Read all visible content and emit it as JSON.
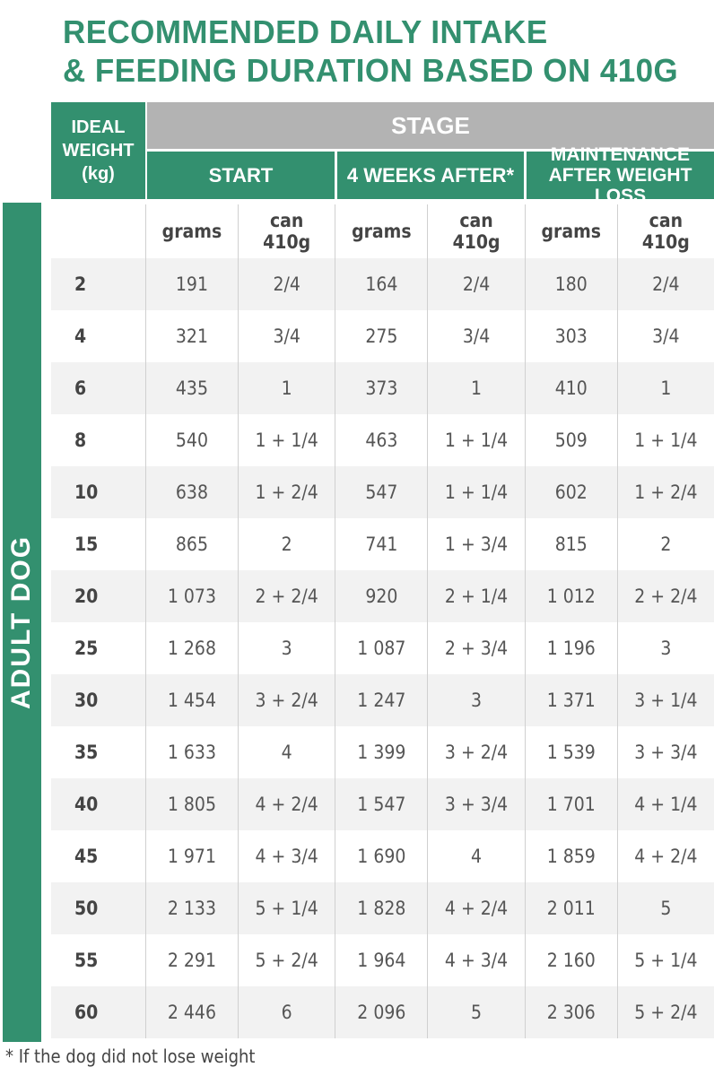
{
  "title": {
    "line1": "RECOMMENDED DAILY INTAKE",
    "line2": "& FEEDING DURATION BASED ON 410G"
  },
  "header": {
    "ideal_weight": "IDEAL WEIGHT (kg)",
    "stage": "STAGE",
    "start": "START",
    "weeks": "4 WEEKS AFTER*",
    "maintenance": "MAINTENANCE AFTER WEIGHT LOSS"
  },
  "subheader": [
    "grams",
    "can 410g",
    "grams",
    "can 410g",
    "grams",
    "can 410g"
  ],
  "side_label": "ADULT DOG",
  "colors": {
    "accent": "#33906f",
    "stage_gray": "#b3b3b3"
  },
  "rows": [
    [
      "2",
      "191",
      "2/4",
      "164",
      "2/4",
      "180",
      "2/4"
    ],
    [
      "4",
      "321",
      "3/4",
      "275",
      "3/4",
      "303",
      "3/4"
    ],
    [
      "6",
      "435",
      "1",
      "373",
      "1",
      "410",
      "1"
    ],
    [
      "8",
      "540",
      "1 + 1/4",
      "463",
      "1 + 1/4",
      "509",
      "1 + 1/4"
    ],
    [
      "10",
      "638",
      "1 + 2/4",
      "547",
      "1 + 1/4",
      "602",
      "1 + 2/4"
    ],
    [
      "15",
      "865",
      "2",
      "741",
      "1 + 3/4",
      "815",
      "2"
    ],
    [
      "20",
      "1 073",
      "2 + 2/4",
      "920",
      "2 + 1/4",
      "1 012",
      "2 + 2/4"
    ],
    [
      "25",
      "1 268",
      "3",
      "1 087",
      "2 + 3/4",
      "1 196",
      "3"
    ],
    [
      "30",
      "1 454",
      "3 + 2/4",
      "1 247",
      "3",
      "1 371",
      "3 + 1/4"
    ],
    [
      "35",
      "1 633",
      "4",
      "1 399",
      "3 + 2/4",
      "1 539",
      "3 + 3/4"
    ],
    [
      "40",
      "1 805",
      "4 + 2/4",
      "1 547",
      "3 + 3/4",
      "1 701",
      "4 + 1/4"
    ],
    [
      "45",
      "1 971",
      "4 + 3/4",
      "1 690",
      "4",
      "1 859",
      "4 + 2/4"
    ],
    [
      "50",
      "2 133",
      "5 + 1/4",
      "1 828",
      "4 + 2/4",
      "2 011",
      "5"
    ],
    [
      "55",
      "2 291",
      "5 + 2/4",
      "1 964",
      "4 + 3/4",
      "2 160",
      "5 + 1/4"
    ],
    [
      "60",
      "2 446",
      "6",
      "2 096",
      "5",
      "2 306",
      "5 + 2/4"
    ]
  ],
  "footnote": "* If the dog did not lose weight"
}
